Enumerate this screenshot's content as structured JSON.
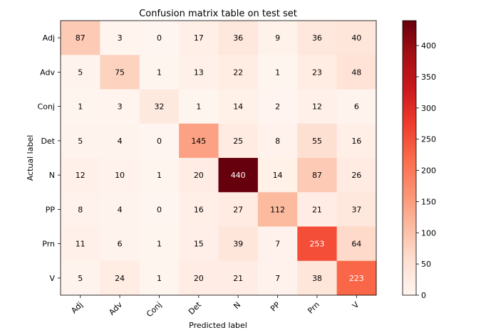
{
  "chart_data": {
    "type": "heatmap",
    "title": "Confusion matrix table on test set",
    "xlabel": "Predicted label",
    "ylabel": "Actual label",
    "x_categories": [
      "Adj",
      "Adv",
      "Conj",
      "Det",
      "N",
      "PP",
      "Prn",
      "V"
    ],
    "y_categories": [
      "Adj",
      "Adv",
      "Conj",
      "Det",
      "N",
      "PP",
      "Prn",
      "V"
    ],
    "values": [
      [
        87,
        3,
        0,
        17,
        36,
        9,
        36,
        40
      ],
      [
        5,
        75,
        1,
        13,
        22,
        1,
        23,
        48
      ],
      [
        1,
        3,
        32,
        1,
        14,
        2,
        12,
        6
      ],
      [
        5,
        4,
        0,
        145,
        25,
        8,
        55,
        16
      ],
      [
        12,
        10,
        1,
        20,
        440,
        14,
        87,
        26
      ],
      [
        8,
        4,
        0,
        16,
        27,
        112,
        21,
        37
      ],
      [
        11,
        6,
        1,
        15,
        39,
        7,
        253,
        64
      ],
      [
        5,
        24,
        1,
        20,
        21,
        7,
        38,
        223
      ]
    ],
    "colormap": "Reds",
    "vmin": 0,
    "vmax": 440,
    "colorbar_ticks": [
      0,
      50,
      100,
      150,
      200,
      250,
      300,
      350,
      400
    ],
    "grid": false,
    "legend": "colorbar-right"
  }
}
